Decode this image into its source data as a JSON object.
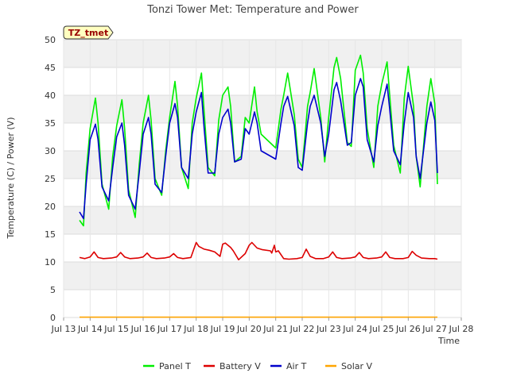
{
  "chart_data": {
    "type": "line",
    "title": "Tonzi Tower Met: Temperature and Power",
    "xlabel": "Time",
    "ylabel": "Temperature (C) / Power (V)",
    "site_label": "TZ_tmet",
    "xlim": [
      13,
      28
    ],
    "ylim": [
      0,
      50
    ],
    "x_ticks": [
      13,
      14,
      15,
      16,
      17,
      18,
      19,
      20,
      21,
      22,
      23,
      24,
      25,
      26,
      27,
      28
    ],
    "x_tick_labels": [
      "Jul 13",
      "Jul 14",
      "Jul 15",
      "Jul 16",
      "Jul 17",
      "Jul 18",
      "Jul 19",
      "Jul 20",
      "Jul 21",
      "Jul 22",
      "Jul 23",
      "Jul 24",
      "Jul 25",
      "Jul 26",
      "Jul 27",
      "Jul 28"
    ],
    "y_ticks": [
      0,
      5,
      10,
      15,
      20,
      25,
      30,
      35,
      40,
      45,
      50
    ],
    "y_tick_labels": [
      "0",
      "5",
      "10",
      "15",
      "20",
      "25",
      "30",
      "35",
      "40",
      "45",
      "50"
    ],
    "legend_position": "bottom",
    "series": [
      {
        "name": "Panel T",
        "color": "#00ee00",
        "x": [
          13.6,
          13.75,
          13.85,
          14.0,
          14.2,
          14.3,
          14.45,
          14.7,
          14.85,
          15.0,
          15.2,
          15.3,
          15.45,
          15.7,
          15.85,
          16.0,
          16.2,
          16.3,
          16.45,
          16.7,
          16.85,
          17.0,
          17.2,
          17.3,
          17.45,
          17.7,
          17.85,
          18.0,
          18.2,
          18.3,
          18.45,
          18.7,
          18.85,
          19.0,
          19.2,
          19.3,
          19.45,
          19.7,
          19.85,
          20.0,
          20.2,
          20.3,
          20.45,
          21.0,
          21.2,
          21.3,
          21.45,
          21.7,
          21.85,
          22.0,
          22.2,
          22.3,
          22.45,
          22.7,
          22.85,
          23.0,
          23.2,
          23.3,
          23.45,
          23.7,
          23.85,
          24.0,
          24.2,
          24.3,
          24.45,
          24.7,
          24.85,
          25.0,
          25.2,
          25.3,
          25.45,
          25.7,
          25.85,
          26.0,
          26.2,
          26.3,
          26.45,
          26.7,
          26.85,
          27.0,
          27.1
        ],
        "values": [
          17.5,
          16.5,
          26.0,
          34.0,
          39.5,
          35.0,
          24.0,
          19.5,
          29.0,
          34.5,
          39.2,
          34.0,
          23.0,
          18.0,
          27.5,
          35.0,
          40.0,
          35.5,
          25.0,
          22.0,
          30.0,
          36.0,
          42.5,
          38.0,
          27.0,
          23.2,
          35.0,
          39.5,
          44.0,
          37.0,
          27.0,
          25.5,
          35.5,
          40.0,
          41.5,
          38.0,
          28.0,
          29.0,
          36.0,
          35.0,
          41.5,
          37.0,
          33.0,
          30.5,
          37.5,
          40.0,
          44.0,
          36.5,
          28.5,
          27.0,
          38.0,
          40.5,
          44.8,
          36.0,
          28.0,
          36.0,
          45.0,
          46.8,
          43.0,
          31.5,
          30.8,
          44.5,
          47.2,
          44.0,
          34.0,
          27.0,
          38.0,
          42.0,
          46.0,
          40.0,
          31.0,
          26.0,
          39.5,
          45.2,
          38.0,
          29.0,
          23.5,
          38.0,
          43.0,
          38.5,
          24.0
        ]
      },
      {
        "name": "Battery V",
        "color": "#dd0000",
        "x": [
          13.6,
          13.8,
          14.0,
          14.15,
          14.3,
          14.5,
          14.8,
          15.0,
          15.15,
          15.3,
          15.5,
          15.8,
          16.0,
          16.15,
          16.3,
          16.5,
          16.8,
          17.0,
          17.15,
          17.3,
          17.5,
          17.8,
          18.0,
          18.1,
          18.3,
          18.5,
          18.7,
          18.9,
          19.0,
          19.1,
          19.3,
          19.4,
          19.6,
          19.85,
          20.0,
          20.1,
          20.3,
          20.5,
          20.8,
          20.85,
          20.95,
          21.0,
          21.1,
          21.3,
          21.5,
          21.8,
          22.0,
          22.15,
          22.3,
          22.5,
          22.8,
          23.0,
          23.15,
          23.3,
          23.5,
          23.8,
          24.0,
          24.15,
          24.3,
          24.5,
          24.8,
          25.0,
          25.15,
          25.3,
          25.5,
          25.8,
          26.0,
          26.15,
          26.3,
          26.5,
          26.8,
          27.0,
          27.1
        ],
        "values": [
          10.8,
          10.6,
          10.9,
          11.8,
          10.8,
          10.6,
          10.7,
          10.9,
          11.7,
          10.9,
          10.6,
          10.7,
          10.9,
          11.6,
          10.8,
          10.6,
          10.7,
          10.9,
          11.5,
          10.8,
          10.6,
          10.8,
          13.5,
          12.8,
          12.3,
          12.1,
          11.8,
          11.0,
          13.2,
          13.4,
          12.6,
          12.0,
          10.4,
          11.5,
          13.0,
          13.5,
          12.5,
          12.2,
          12.0,
          11.6,
          13.0,
          11.8,
          12.0,
          10.6,
          10.5,
          10.6,
          10.8,
          12.3,
          11.0,
          10.6,
          10.6,
          10.9,
          11.8,
          10.8,
          10.6,
          10.7,
          10.9,
          11.7,
          10.8,
          10.6,
          10.7,
          10.9,
          11.8,
          10.8,
          10.6,
          10.6,
          10.8,
          11.9,
          11.2,
          10.7,
          10.6,
          10.6,
          10.5
        ]
      },
      {
        "name": "Air T",
        "color": "#0000cc",
        "x": [
          13.6,
          13.75,
          13.85,
          14.0,
          14.2,
          14.3,
          14.45,
          14.7,
          14.85,
          15.0,
          15.2,
          15.3,
          15.45,
          15.7,
          15.85,
          16.0,
          16.2,
          16.3,
          16.45,
          16.7,
          16.85,
          17.0,
          17.2,
          17.3,
          17.45,
          17.7,
          17.85,
          18.0,
          18.2,
          18.3,
          18.45,
          18.7,
          18.85,
          19.0,
          19.2,
          19.3,
          19.45,
          19.7,
          19.85,
          20.0,
          20.2,
          20.3,
          20.45,
          21.0,
          21.2,
          21.3,
          21.45,
          21.7,
          21.85,
          22.0,
          22.2,
          22.3,
          22.45,
          22.7,
          22.85,
          23.0,
          23.2,
          23.3,
          23.45,
          23.7,
          23.85,
          24.0,
          24.2,
          24.3,
          24.45,
          24.7,
          24.85,
          25.0,
          25.2,
          25.3,
          25.45,
          25.7,
          25.85,
          26.0,
          26.2,
          26.3,
          26.45,
          26.7,
          26.85,
          27.0,
          27.1
        ],
        "values": [
          19.0,
          17.8,
          24.0,
          32.0,
          34.8,
          32.0,
          23.5,
          21.0,
          27.0,
          32.5,
          35.0,
          31.0,
          22.0,
          19.5,
          26.0,
          33.0,
          36.0,
          33.0,
          24.0,
          22.5,
          29.0,
          35.0,
          38.5,
          36.0,
          27.0,
          25.0,
          33.0,
          37.0,
          40.5,
          34.0,
          26.0,
          26.0,
          33.0,
          36.0,
          37.5,
          35.0,
          28.0,
          28.5,
          34.0,
          33.0,
          37.0,
          35.0,
          30.0,
          28.5,
          35.0,
          38.0,
          39.8,
          34.5,
          27.0,
          26.5,
          35.0,
          38.0,
          40.0,
          35.0,
          29.0,
          33.0,
          41.0,
          42.3,
          39.0,
          31.0,
          31.5,
          40.0,
          43.0,
          41.5,
          32.0,
          28.0,
          34.5,
          38.0,
          42.0,
          37.5,
          30.0,
          27.5,
          35.0,
          40.5,
          36.0,
          29.0,
          25.0,
          35.0,
          38.8,
          35.5,
          26.0
        ]
      },
      {
        "name": "Solar V",
        "color": "#ffa500",
        "x": [
          13.6,
          27.1
        ],
        "values": [
          0.05,
          0.05
        ]
      }
    ]
  }
}
